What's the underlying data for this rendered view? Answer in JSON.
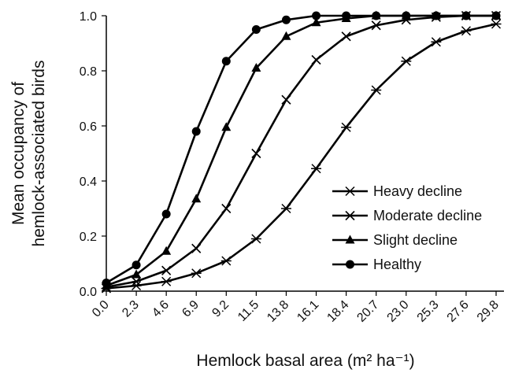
{
  "chart_data": {
    "type": "line",
    "title": "",
    "xlabel": "Hemlock basal area (m² ha⁻¹)",
    "ylabel_line1": "Mean occupancy of",
    "ylabel_line2": "hemlock-associated birds",
    "categories": [
      "0.0",
      "2.3",
      "4.6",
      "6.9",
      "9.2",
      "11.5",
      "13.8",
      "16.1",
      "18.4",
      "20.7",
      "23.0",
      "25.3",
      "27.6",
      "29.8"
    ],
    "ylim": [
      0,
      1.0
    ],
    "yticks": [
      "0.0",
      "0.2",
      "0.4",
      "0.6",
      "0.8",
      "1.0"
    ],
    "grid": false,
    "legend_position": "center-right",
    "series": [
      {
        "name": "Heavy decline",
        "marker": "asterisk",
        "values": [
          0.01,
          0.02,
          0.035,
          0.065,
          0.11,
          0.19,
          0.3,
          0.445,
          0.595,
          0.73,
          0.835,
          0.905,
          0.945,
          0.97
        ]
      },
      {
        "name": "Moderate decline",
        "marker": "x",
        "values": [
          0.015,
          0.035,
          0.075,
          0.155,
          0.3,
          0.5,
          0.695,
          0.84,
          0.925,
          0.965,
          0.985,
          0.995,
          1.0,
          1.0
        ]
      },
      {
        "name": "Slight decline",
        "marker": "triangle",
        "values": [
          0.02,
          0.06,
          0.145,
          0.335,
          0.595,
          0.81,
          0.925,
          0.975,
          0.99,
          1.0,
          1.0,
          1.0,
          1.0,
          1.0
        ]
      },
      {
        "name": "Healthy",
        "marker": "circle",
        "values": [
          0.03,
          0.095,
          0.28,
          0.58,
          0.835,
          0.95,
          0.985,
          1.0,
          1.0,
          1.0,
          1.0,
          1.0,
          1.0,
          1.0
        ]
      }
    ],
    "colors": {
      "line": "#000000"
    }
  }
}
